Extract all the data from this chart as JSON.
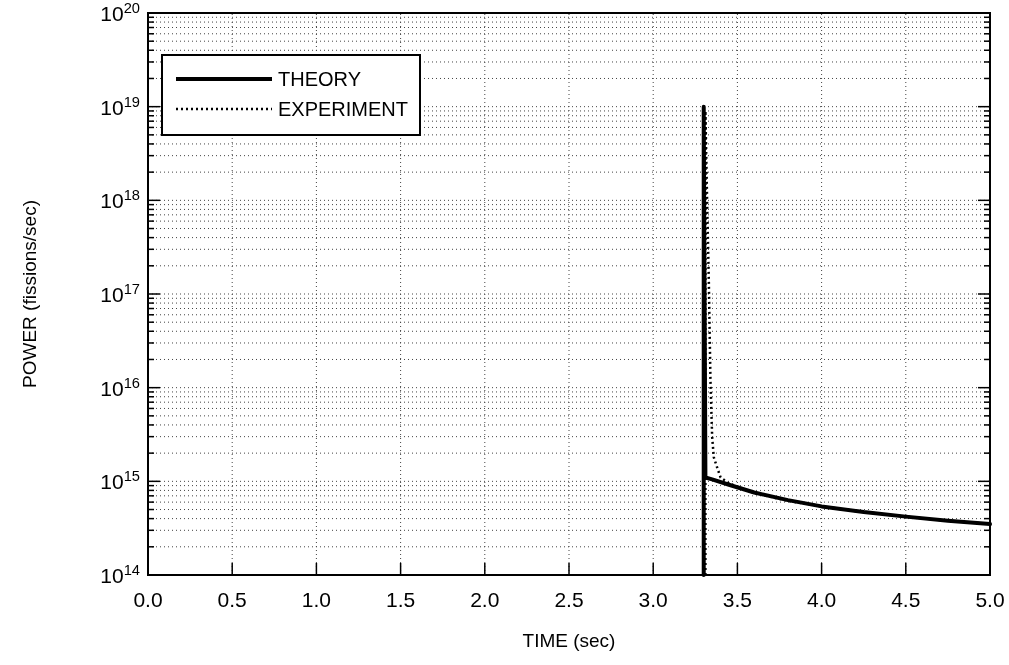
{
  "chart_data": {
    "type": "line",
    "xlabel": "TIME (sec)",
    "ylabel": "POWER (fissions/sec)",
    "log": "y",
    "grid": true,
    "legend": "top left",
    "xlim": [
      0,
      5
    ],
    "xticks": [
      {
        "value": 0,
        "label": "0.0"
      },
      0.5,
      {
        "value": 1,
        "label": "1.0"
      },
      1.5,
      {
        "value": 2,
        "label": "2.0"
      },
      2.5,
      {
        "value": 3,
        "label": "3.0"
      },
      3.5,
      {
        "value": 4,
        "label": "4.0"
      },
      4.5,
      {
        "value": 5,
        "label": "5.0"
      }
    ],
    "ylim": [
      100000000000000.0,
      1e+20
    ],
    "yticks": [
      {
        "value": 100000000000000.0,
        "label": "10$^{14}$"
      },
      {
        "value": 200000000000000.0,
        "label": null
      },
      {
        "value": 300000000000000.0,
        "label": null
      },
      {
        "value": 400000000000000.0,
        "label": null
      },
      {
        "value": 500000000000000.0,
        "label": null
      },
      {
        "value": 600000000000000.0,
        "label": null
      },
      {
        "value": 700000000000000.0,
        "label": null
      },
      {
        "value": 800000000000000.0,
        "label": null
      },
      {
        "value": 900000000000000.0,
        "label": null
      },
      {
        "value": 1000000000000000.0,
        "label": "10$^{15}$"
      },
      {
        "value": 2000000000000000.0,
        "label": null
      },
      {
        "value": 3000000000000000.0,
        "label": null
      },
      {
        "value": 4000000000000000.0,
        "label": null
      },
      {
        "value": 5000000000000000.0,
        "label": null
      },
      {
        "value": 6000000000000000.0,
        "label": null
      },
      {
        "value": 7000000000000000.0,
        "label": null
      },
      {
        "value": 8000000000000000.0,
        "label": null
      },
      {
        "value": 9000000000000000.0,
        "label": null
      },
      {
        "value": 1e+16,
        "label": "10$^{16}$"
      },
      {
        "value": 2e+16,
        "label": null
      },
      {
        "value": 3e+16,
        "label": null
      },
      {
        "value": 4e+16,
        "label": null
      },
      {
        "value": 5e+16,
        "label": null
      },
      {
        "value": 6e+16,
        "label": null
      },
      {
        "value": 7e+16,
        "label": null
      },
      {
        "value": 8e+16,
        "label": null
      },
      {
        "value": 9e+16,
        "label": null
      },
      {
        "value": 1e+17,
        "label": "10$^{17}$"
      },
      {
        "value": 2e+17,
        "label": null
      },
      {
        "value": 3e+17,
        "label": null
      },
      {
        "value": 4e+17,
        "label": null
      },
      {
        "value": 5e+17,
        "label": null
      },
      {
        "value": 6e+17,
        "label": null
      },
      {
        "value": 7e+17,
        "label": null
      },
      {
        "value": 8e+17,
        "label": null
      },
      {
        "value": 9e+17,
        "label": null
      },
      {
        "value": 1e+18,
        "label": "10$^{18}$"
      },
      {
        "value": 2e+18,
        "label": null
      },
      {
        "value": 3e+18,
        "label": null
      },
      {
        "value": 4e+18,
        "label": null
      },
      {
        "value": 5e+18,
        "label": null
      },
      {
        "value": 6e+18,
        "label": null
      },
      {
        "value": 7e+18,
        "label": null
      },
      {
        "value": 8e+18,
        "label": null
      },
      {
        "value": 9e+18,
        "label": null
      },
      {
        "value": 1e+19,
        "label": "10$^{19}$"
      },
      {
        "value": 2e+19,
        "label": null
      },
      {
        "value": 3e+19,
        "label": null
      },
      {
        "value": 4e+19,
        "label": null
      },
      {
        "value": 5e+19,
        "label": null
      },
      {
        "value": 6e+19,
        "label": null
      },
      {
        "value": 7e+19,
        "label": null
      },
      {
        "value": 8e+19,
        "label": null
      },
      {
        "value": 9e+19,
        "label": null
      },
      {
        "value": 1e+20,
        "label": "10$^{20}$"
      }
    ],
    "series": [
      {
        "name": "THEORY",
        "color": "#000000",
        "line_style": "solid",
        "x": [
          3.3,
          3.3,
          3.31,
          3.35,
          3.45,
          3.6,
          3.8,
          4.0,
          4.25,
          4.5,
          4.75,
          5.0
        ],
        "values": [
          100000000000000.0,
          1e+19,
          1100000000000000.0,
          1050000000000000.0,
          920000000000000.0,
          760000000000000.0,
          630000000000000.0,
          540000000000000.0,
          470000000000000.0,
          420000000000000.0,
          380000000000000.0,
          350000000000000.0
        ]
      },
      {
        "name": "EXPERIMENT",
        "color": "#000000",
        "line_style": "dotted",
        "x": [
          3.31,
          3.31,
          3.32,
          3.33,
          3.34,
          3.35,
          3.36,
          3.38,
          3.4,
          3.45,
          3.6,
          3.8,
          4.0,
          4.25,
          4.5,
          4.75,
          5.0
        ],
        "values": [
          100000000000000.0,
          9e+18,
          1e+18,
          1.5e+17,
          1.2e+16,
          3000000000000000.0,
          1800000000000000.0,
          1400000000000000.0,
          1100000000000000.0,
          950000000000000.0,
          750000000000000.0,
          620000000000000.0,
          540000000000000.0,
          470000000000000.0,
          420000000000000.0,
          380000000000000.0,
          350000000000000.0
        ]
      }
    ]
  }
}
